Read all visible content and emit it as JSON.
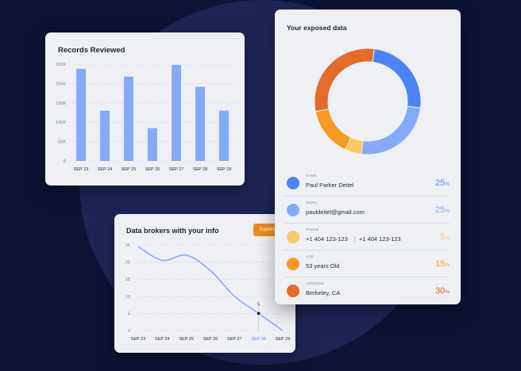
{
  "colors": {
    "background": "#0e1236",
    "circle": "#1f2456",
    "bar": "#86aaf9",
    "accent_orange": "#f08c1a",
    "line": "#86aaf9",
    "highlight_label": "#5d86f2"
  },
  "records_card": {
    "title": "Records Reviewed",
    "chart_data": {
      "type": "bar",
      "categories": [
        "SEP 23",
        "SEP 24",
        "SEP 25",
        "SEP 26",
        "SEP 27",
        "SEP 28",
        "SEP 29"
      ],
      "values": [
        238000,
        130000,
        218000,
        85000,
        248000,
        192000,
        130000
      ],
      "ytick_labels": [
        "0",
        "50K",
        "100K",
        "150K",
        "200K",
        "250K"
      ],
      "ylim": [
        0,
        250000
      ],
      "grid": true
    }
  },
  "brokers_card": {
    "title": "Data brokers with your info",
    "explore_label": "Explore",
    "chart_data": {
      "type": "line",
      "x": [
        "SEP 23",
        "SEP 24",
        "SEP 25",
        "SEP 26",
        "SEP 27",
        "SEP 28",
        "SEP 29"
      ],
      "y": [
        24.5,
        20.5,
        22,
        17.5,
        10,
        5,
        0
      ],
      "ytick_labels": [
        "0",
        "5",
        "10",
        "15",
        "20",
        "25"
      ],
      "ylim": [
        0,
        25
      ],
      "highlight": {
        "x": "SEP 28",
        "label": "5"
      },
      "grid": true
    }
  },
  "exposed_card": {
    "title": "Your exposed data",
    "chart_data": {
      "type": "pie",
      "labels": [
        "NAME",
        "EMAIL",
        "PHONE",
        "AGE",
        "ADDRESS"
      ],
      "values": [
        25,
        25,
        5,
        15,
        30
      ],
      "colors": [
        "#4d84f5",
        "#86aaf9",
        "#fdc863",
        "#f79a22",
        "#e56a2b"
      ]
    },
    "items": [
      {
        "label": "NAME",
        "value": "Paul Parker Deitel",
        "value2": "",
        "pct": "25",
        "color": "#4d84f5"
      },
      {
        "label": "EMAIL",
        "value": "pauldeitel@gmail.com",
        "value2": "",
        "pct": "25",
        "color": "#86aaf9"
      },
      {
        "label": "PHONE",
        "value": "+1 404 123-123",
        "value2": "+1 404 123-123",
        "pct": "5",
        "color": "#fdc863"
      },
      {
        "label": "AGE",
        "value": "53 years Old",
        "value2": "",
        "pct": "15",
        "color": "#f79a22"
      },
      {
        "label": "ADDRESS",
        "value": "Berkeley, CA",
        "value2": "",
        "pct": "30",
        "color": "#e56a2b"
      }
    ]
  }
}
